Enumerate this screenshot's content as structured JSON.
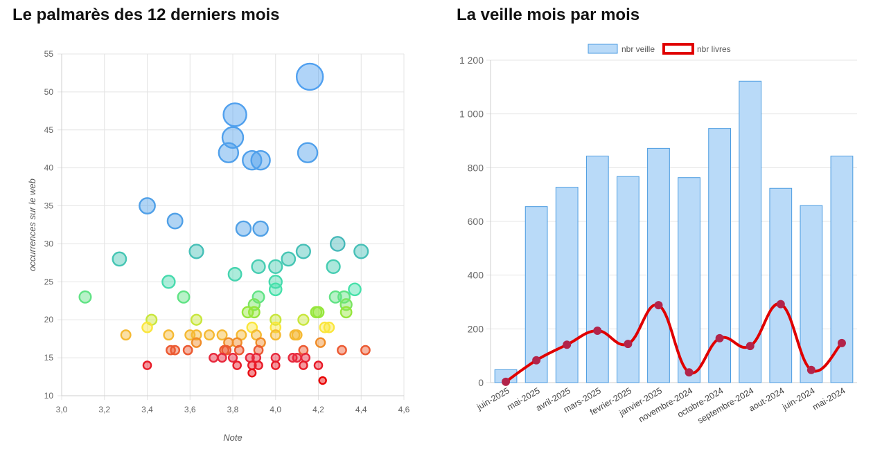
{
  "left_title": "Le palmarès des 12 derniers mois",
  "right_title": "La veille mois par mois",
  "chart_data": [
    {
      "type": "scatter",
      "title": "Le palmarès des 12 derniers mois",
      "xlabel": "Note",
      "ylabel": "occurrences sur le web",
      "xlim": [
        3.0,
        4.6
      ],
      "ylim": [
        10,
        55
      ],
      "xticks": [
        "3,0",
        "3,2",
        "3,4",
        "3,6",
        "3,8",
        "4,0",
        "4,2",
        "4,4",
        "4,6"
      ],
      "yticks": [
        "10",
        "15",
        "20",
        "25",
        "30",
        "35",
        "40",
        "45",
        "50",
        "55"
      ],
      "grid": true,
      "points": [
        [
          4.16,
          52
        ],
        [
          3.81,
          47
        ],
        [
          3.8,
          44
        ],
        [
          3.78,
          42
        ],
        [
          3.89,
          41
        ],
        [
          3.93,
          41
        ],
        [
          4.15,
          42
        ],
        [
          3.4,
          35
        ],
        [
          3.53,
          33
        ],
        [
          3.85,
          32
        ],
        [
          3.93,
          32
        ],
        [
          3.63,
          29
        ],
        [
          4.29,
          30
        ],
        [
          4.4,
          29
        ],
        [
          4.13,
          29
        ],
        [
          4.06,
          28
        ],
        [
          3.92,
          27
        ],
        [
          4.0,
          27
        ],
        [
          4.27,
          27
        ],
        [
          3.27,
          28
        ],
        [
          3.81,
          26
        ],
        [
          3.5,
          25
        ],
        [
          4.0,
          25
        ],
        [
          4.37,
          24
        ],
        [
          4.0,
          24
        ],
        [
          3.57,
          23
        ],
        [
          3.92,
          23
        ],
        [
          4.28,
          23
        ],
        [
          4.32,
          23
        ],
        [
          4.33,
          22
        ],
        [
          3.9,
          22
        ],
        [
          3.11,
          23
        ],
        [
          4.19,
          21
        ],
        [
          3.9,
          21
        ],
        [
          3.87,
          21
        ],
        [
          4.2,
          21
        ],
        [
          4.33,
          21
        ],
        [
          3.63,
          20
        ],
        [
          4.0,
          20
        ],
        [
          4.13,
          20
        ],
        [
          4.25,
          19
        ],
        [
          4.0,
          19
        ],
        [
          4.23,
          19
        ],
        [
          3.89,
          19
        ],
        [
          3.4,
          19
        ],
        [
          3.42,
          20
        ],
        [
          3.3,
          18
        ],
        [
          3.5,
          18
        ],
        [
          3.6,
          18
        ],
        [
          3.63,
          18
        ],
        [
          3.69,
          18
        ],
        [
          3.75,
          18
        ],
        [
          3.84,
          18
        ],
        [
          3.91,
          18
        ],
        [
          4.0,
          18
        ],
        [
          4.09,
          18
        ],
        [
          4.1,
          18
        ],
        [
          3.53,
          16
        ],
        [
          3.51,
          16
        ],
        [
          3.59,
          16
        ],
        [
          3.76,
          16
        ],
        [
          3.77,
          16
        ],
        [
          3.83,
          16
        ],
        [
          3.92,
          16
        ],
        [
          4.13,
          16
        ],
        [
          4.31,
          16
        ],
        [
          4.42,
          16
        ],
        [
          3.63,
          17
        ],
        [
          3.78,
          17
        ],
        [
          3.82,
          17
        ],
        [
          3.93,
          17
        ],
        [
          4.21,
          17
        ],
        [
          3.91,
          15
        ],
        [
          3.71,
          15
        ],
        [
          3.75,
          15
        ],
        [
          3.8,
          15
        ],
        [
          3.88,
          15
        ],
        [
          4.0,
          15
        ],
        [
          4.08,
          15
        ],
        [
          4.1,
          15
        ],
        [
          4.14,
          15
        ],
        [
          3.4,
          14
        ],
        [
          3.82,
          14
        ],
        [
          3.89,
          14
        ],
        [
          3.92,
          14
        ],
        [
          4.0,
          14
        ],
        [
          4.13,
          14
        ],
        [
          4.2,
          14
        ],
        [
          3.89,
          13
        ],
        [
          4.22,
          12
        ]
      ]
    },
    {
      "type": "bar",
      "title": "La veille mois par mois",
      "categories": [
        "juin-2025",
        "mai-2025",
        "avril-2025",
        "mars-2025",
        "fevrier-2025",
        "janvier-2025",
        "novembre-2024",
        "octobre-2024",
        "septembre-2024",
        "aout-2024",
        "juin-2024",
        "mai-2024"
      ],
      "series": [
        {
          "name": "nbr veille",
          "type": "bar",
          "color": "#b9daf8",
          "border": "#4a9be0",
          "values": [
            48,
            655,
            727,
            843,
            767,
            872,
            763,
            946,
            1122,
            723,
            659,
            843
          ]
        },
        {
          "name": "nbr livres",
          "type": "line",
          "color": "#e00000",
          "marker": "#b2244a",
          "values": [
            3,
            83,
            141,
            193,
            144,
            288,
            38,
            165,
            136,
            292,
            47,
            147
          ]
        }
      ],
      "ylim": [
        0,
        1200
      ],
      "yticks": [
        "0",
        "200",
        "400",
        "600",
        "800",
        "1 000",
        "1 200"
      ],
      "legend": "top-center"
    }
  ]
}
